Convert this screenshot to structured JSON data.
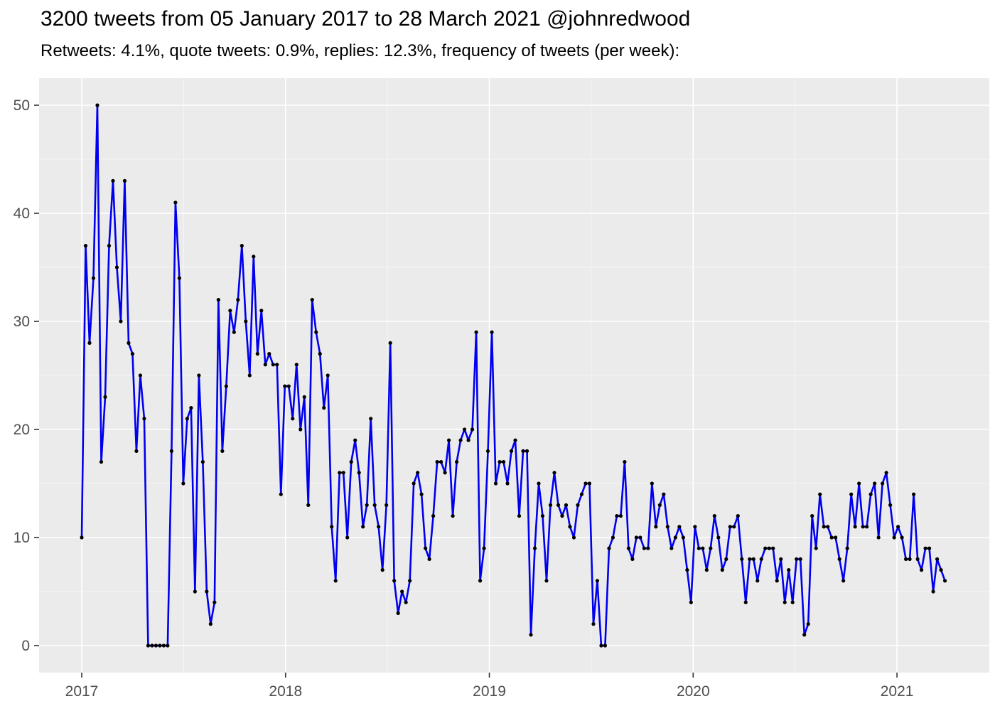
{
  "header": {
    "title": "3200 tweets from 05 January 2017 to 28 March 2021 @johnredwood",
    "subtitle": "Retweets: 4.1%, quote tweets: 0.9%, replies: 12.3%, frequency of tweets (per week):"
  },
  "colors": {
    "line": "#0000EE",
    "point": "#000000",
    "panel_bg": "#EBEBEB",
    "grid_major": "#FFFFFF",
    "grid_minor": "#F5F5F5",
    "axis_text": "#4D4D4D",
    "tick_mark": "#333333",
    "title_text": "#000000"
  },
  "chart_data": {
    "type": "line",
    "title": "3200 tweets from 05 January 2017 to 28 March 2021 @johnredwood",
    "subtitle": "Retweets: 4.1%, quote tweets: 0.9%, replies: 12.3%, frequency of tweets (per week):",
    "xlabel": "",
    "ylabel": "",
    "x_unit": "week",
    "x_start_label": "05 January 2017",
    "x_end_label": "28 March 2021",
    "ylim": [
      0,
      50
    ],
    "grid": true,
    "legend": false,
    "y_ticks": [
      0,
      10,
      20,
      30,
      40,
      50
    ],
    "x_ticks": [
      {
        "label": "2017",
        "year": 2017
      },
      {
        "label": "2018",
        "year": 2018
      },
      {
        "label": "2019",
        "year": 2019
      },
      {
        "label": "2020",
        "year": 2020
      },
      {
        "label": "2021",
        "year": 2021
      }
    ],
    "weekly_values": [
      10,
      37,
      28,
      34,
      50,
      17,
      23,
      37,
      43,
      35,
      30,
      43,
      28,
      27,
      18,
      25,
      21,
      0,
      0,
      0,
      0,
      0,
      0,
      18,
      41,
      34,
      15,
      21,
      22,
      5,
      25,
      17,
      5,
      2,
      4,
      32,
      18,
      24,
      31,
      29,
      32,
      37,
      30,
      25,
      36,
      27,
      31,
      26,
      27,
      26,
      26,
      14,
      24,
      24,
      21,
      26,
      20,
      23,
      13,
      32,
      29,
      27,
      22,
      25,
      11,
      6,
      16,
      16,
      10,
      17,
      19,
      16,
      11,
      13,
      21,
      13,
      11,
      7,
      13,
      28,
      6,
      3,
      5,
      4,
      6,
      15,
      16,
      14,
      9,
      8,
      12,
      17,
      17,
      16,
      19,
      12,
      17,
      19,
      20,
      19,
      20,
      29,
      6,
      9,
      18,
      29,
      15,
      17,
      17,
      15,
      18,
      19,
      12,
      18,
      18,
      1,
      9,
      15,
      12,
      6,
      13,
      16,
      13,
      12,
      13,
      11,
      10,
      13,
      14,
      15,
      15,
      2,
      6,
      0,
      0,
      9,
      10,
      12,
      12,
      17,
      9,
      8,
      10,
      10,
      9,
      9,
      15,
      11,
      13,
      14,
      11,
      9,
      10,
      11,
      10,
      7,
      4,
      11,
      9,
      9,
      7,
      9,
      12,
      10,
      7,
      8,
      11,
      11,
      12,
      8,
      4,
      8,
      8,
      6,
      8,
      9,
      9,
      9,
      6,
      8,
      4,
      7,
      4,
      8,
      8,
      1,
      2,
      12,
      9,
      14,
      11,
      11,
      10,
      10,
      8,
      6,
      9,
      14,
      11,
      15,
      11,
      11,
      14,
      15,
      10,
      15,
      16,
      13,
      10,
      11,
      10,
      8,
      8,
      14,
      8,
      7,
      9,
      9,
      5,
      8,
      7,
      6
    ]
  }
}
